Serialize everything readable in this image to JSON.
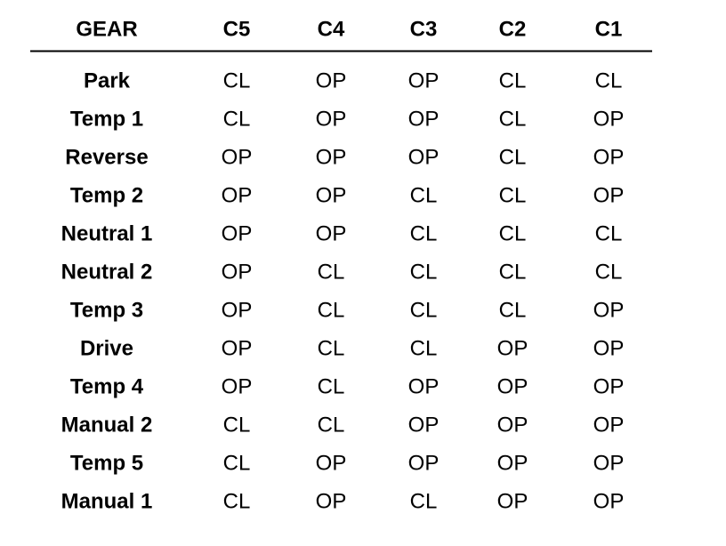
{
  "table": {
    "header": [
      "GEAR",
      "C5",
      "C4",
      "C3",
      "C2",
      "C1"
    ],
    "rows": [
      [
        "Park",
        "CL",
        "OP",
        "OP",
        "CL",
        "CL"
      ],
      [
        "Temp 1",
        "CL",
        "OP",
        "OP",
        "CL",
        "OP"
      ],
      [
        "Reverse",
        "OP",
        "OP",
        "OP",
        "CL",
        "OP"
      ],
      [
        "Temp 2",
        "OP",
        "OP",
        "CL",
        "CL",
        "OP"
      ],
      [
        "Neutral 1",
        "OP",
        "OP",
        "CL",
        "CL",
        "CL"
      ],
      [
        "Neutral 2",
        "OP",
        "CL",
        "CL",
        "CL",
        "CL"
      ],
      [
        "Temp 3",
        "OP",
        "CL",
        "CL",
        "CL",
        "OP"
      ],
      [
        "Drive",
        "OP",
        "CL",
        "CL",
        "OP",
        "OP"
      ],
      [
        "Temp 4",
        "OP",
        "CL",
        "OP",
        "OP",
        "OP"
      ],
      [
        "Manual 2",
        "CL",
        "CL",
        "OP",
        "OP",
        "OP"
      ],
      [
        "Temp 5",
        "CL",
        "OP",
        "OP",
        "OP",
        "OP"
      ],
      [
        "Manual 1",
        "CL",
        "OP",
        "CL",
        "OP",
        "OP"
      ]
    ]
  }
}
